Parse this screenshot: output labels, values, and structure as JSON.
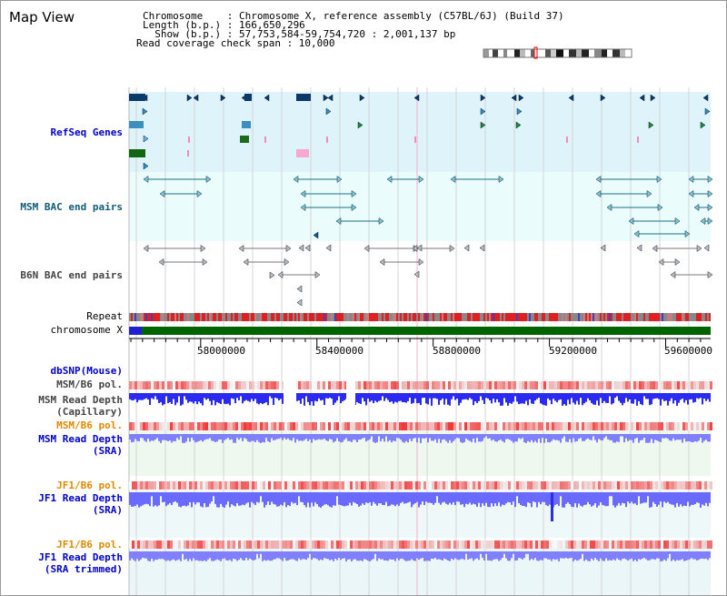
{
  "window": {
    "title": "Map View"
  },
  "header": {
    "lines": [
      "Chromosome    : Chromosome X, reference assembly (C57BL/6J) (Build 37)",
      "Length (b.p.) : 166,650,296",
      "  Show (b.p.) : 57,753,584-59,754,720 : 2,001,137 bp",
      "Read coverage check span : 10,000"
    ]
  },
  "tracks": {
    "refseq": "RefSeq Genes",
    "msm_bac": "MSM BAC end pairs",
    "b6n_bac": "B6N BAC end pairs",
    "repeat": "Repeat",
    "chromosome": "chromosome X",
    "dbsnp": "dbSNP(Mouse)",
    "msm_b6_pol": "MSM/B6 pol.",
    "msm_read_depth": "MSM Read Depth",
    "capillary": "(Capillary)",
    "msm_b6_pol_2": "MSM/B6 pol.",
    "msm_read_depth_2": "MSM Read Depth",
    "sra": "(SRA)",
    "jf1_b6_pol": "JF1/B6 pol.",
    "jf1_read_depth": "JF1 Read Depth",
    "sra_2": "(SRA)",
    "jf1_b6_pol_2": "JF1/B6 pol.",
    "jf1_read_depth_2": "JF1 Read Depth",
    "sra_trimmed": "(SRA trimmed)"
  },
  "axis": {
    "ticks": [
      "58000000",
      "58400000",
      "58800000",
      "59200000",
      "59600000"
    ],
    "tick_values": [
      58000000,
      58400000,
      58800000,
      59200000,
      59600000
    ],
    "range": [
      57753584,
      59754720
    ]
  },
  "colors": {
    "refseq_bg": "#dff3fb",
    "msm_bac_bg": "#eafcfc",
    "b6n_bg": "#f4f4f4",
    "chromosome_green": "#006400",
    "pol_red": "#e83030",
    "depth_blue": "#3a3af0",
    "depth_light": "#8888ff"
  }
}
